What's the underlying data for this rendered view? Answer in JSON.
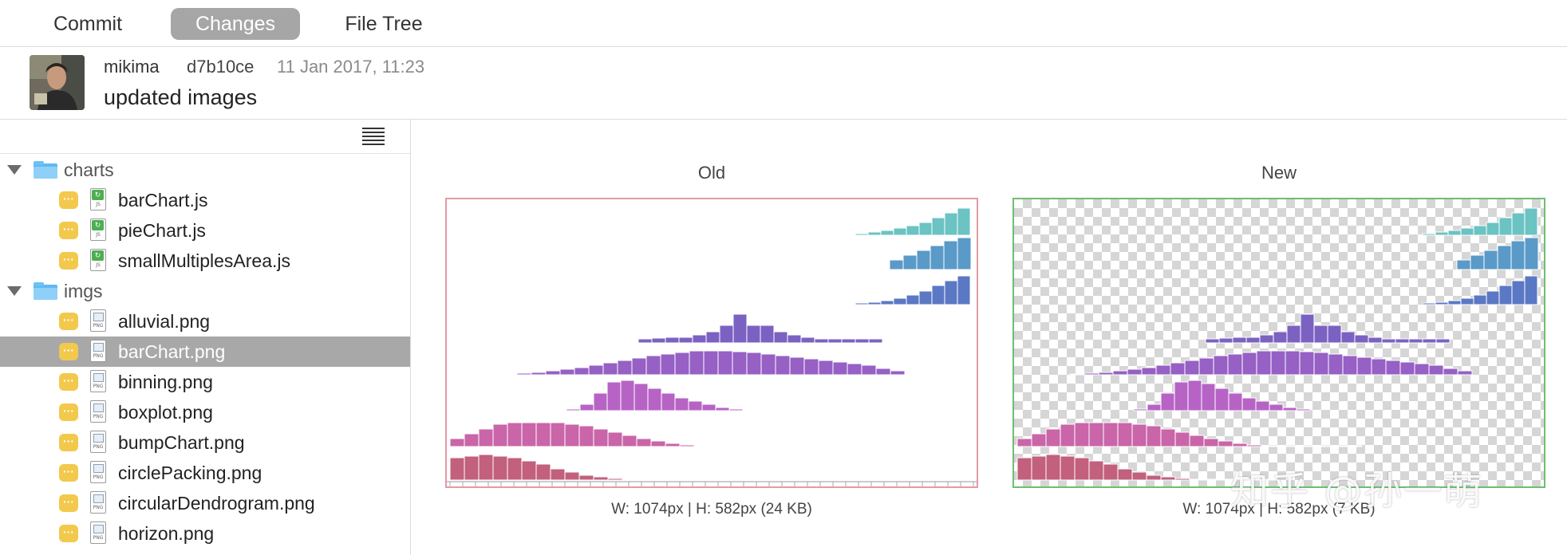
{
  "tabs": [
    {
      "label": "Commit",
      "active": false
    },
    {
      "label": "Changes",
      "active": true
    },
    {
      "label": "File Tree",
      "active": false
    }
  ],
  "commit": {
    "author": "mikima",
    "hash": "d7b10ce",
    "date": "11 Jan 2017, 11:23",
    "message": "updated images"
  },
  "tree": {
    "folders": [
      {
        "name": "charts",
        "expanded": true,
        "files": [
          {
            "name": "barChart.js",
            "type": "js",
            "status": "modified"
          },
          {
            "name": "pieChart.js",
            "type": "js",
            "status": "modified"
          },
          {
            "name": "smallMultiplesArea.js",
            "type": "js",
            "status": "modified"
          }
        ]
      },
      {
        "name": "imgs",
        "expanded": true,
        "files": [
          {
            "name": "alluvial.png",
            "type": "png",
            "status": "modified"
          },
          {
            "name": "barChart.png",
            "type": "png",
            "status": "modified",
            "selected": true
          },
          {
            "name": "binning.png",
            "type": "png",
            "status": "modified"
          },
          {
            "name": "boxplot.png",
            "type": "png",
            "status": "modified"
          },
          {
            "name": "bumpChart.png",
            "type": "png",
            "status": "modified"
          },
          {
            "name": "circlePacking.png",
            "type": "png",
            "status": "modified"
          },
          {
            "name": "circularDendrogram.png",
            "type": "png",
            "status": "modified"
          },
          {
            "name": "horizon.png",
            "type": "png",
            "status": "modified"
          }
        ]
      }
    ]
  },
  "compare": {
    "old": {
      "title": "Old",
      "caption": "W: 1074px | H: 582px (24 KB)"
    },
    "new": {
      "title": "New",
      "caption": "W: 1074px | H: 582px (7 KB)"
    }
  },
  "watermark": "知乎 @孙一萌",
  "colors": {
    "selected_row": "#a8a8a8",
    "status_badge": "#f2c94c",
    "old_border": "#e39aa6",
    "new_border": "#6dbf70",
    "folder": "#5fb8f2"
  },
  "icons": {
    "status": "ellipsis-badge-icon",
    "folder": "folder-icon",
    "disclosure": "disclosure-triangle-icon",
    "js_file": "js-file-icon",
    "png_file": "png-file-icon",
    "menu": "hamburger-menu-icon"
  }
}
